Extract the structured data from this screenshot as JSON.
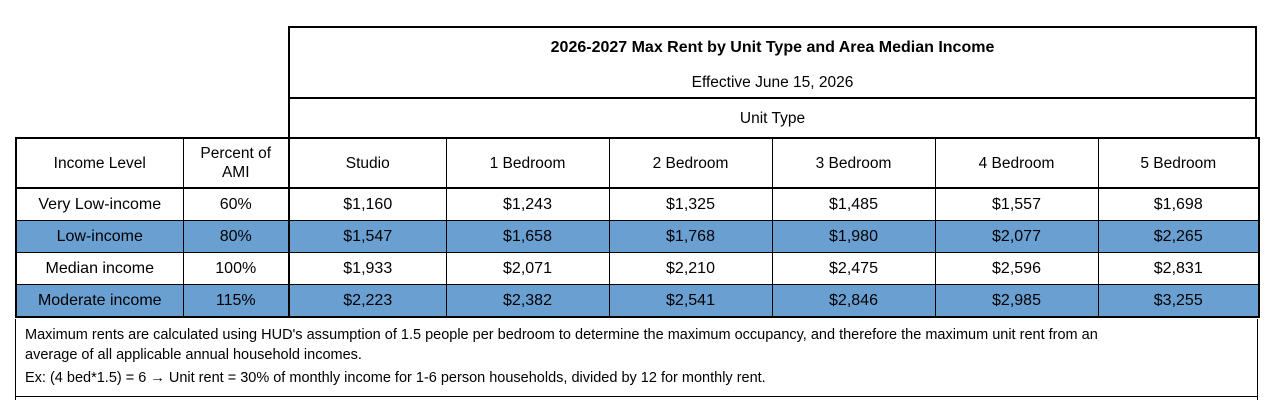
{
  "title": "2026-2027 Max Rent by Unit Type and Area Median Income",
  "subtitle": "Effective June 15, 2026",
  "unit_type_label": "Unit Type",
  "columns": {
    "income_level": "Income Level",
    "percent_ami": "Percent of AMI",
    "units": [
      "Studio",
      "1 Bedroom",
      "2 Bedroom",
      "3 Bedroom",
      "4 Bedroom",
      "5 Bedroom"
    ]
  },
  "rows": [
    {
      "level": "Very Low-income",
      "ami": "60%",
      "rents": [
        "$1,160",
        "$1,243",
        "$1,325",
        "$1,485",
        "$1,557",
        "$1,698"
      ],
      "highlighted": false
    },
    {
      "level": "Low-income",
      "ami": "80%",
      "rents": [
        "$1,547",
        "$1,658",
        "$1,768",
        "$1,980",
        "$2,077",
        "$2,265"
      ],
      "highlighted": true
    },
    {
      "level": "Median income",
      "ami": "100%",
      "rents": [
        "$1,933",
        "$2,071",
        "$2,210",
        "$2,475",
        "$2,596",
        "$2,831"
      ],
      "highlighted": false
    },
    {
      "level": "Moderate income",
      "ami": "115%",
      "rents": [
        "$2,223",
        "$2,382",
        "$2,541",
        "$2,846",
        "$2,985",
        "$3,255"
      ],
      "highlighted": true
    }
  ],
  "highlight_color": "#6a9fd2",
  "notes": {
    "line1": "Maximum rents are calculated using HUD's assumption of 1.5 people per bedroom to determine the maximum occupancy, and therefore the maximum unit rent from an",
    "line2": "average of all applicable annual household incomes.",
    "line3": "Ex: (4 bed*1.5) = 6 →  Unit rent = 30% of monthly income for 1-6 person households, divided by 12 for monthly rent."
  }
}
